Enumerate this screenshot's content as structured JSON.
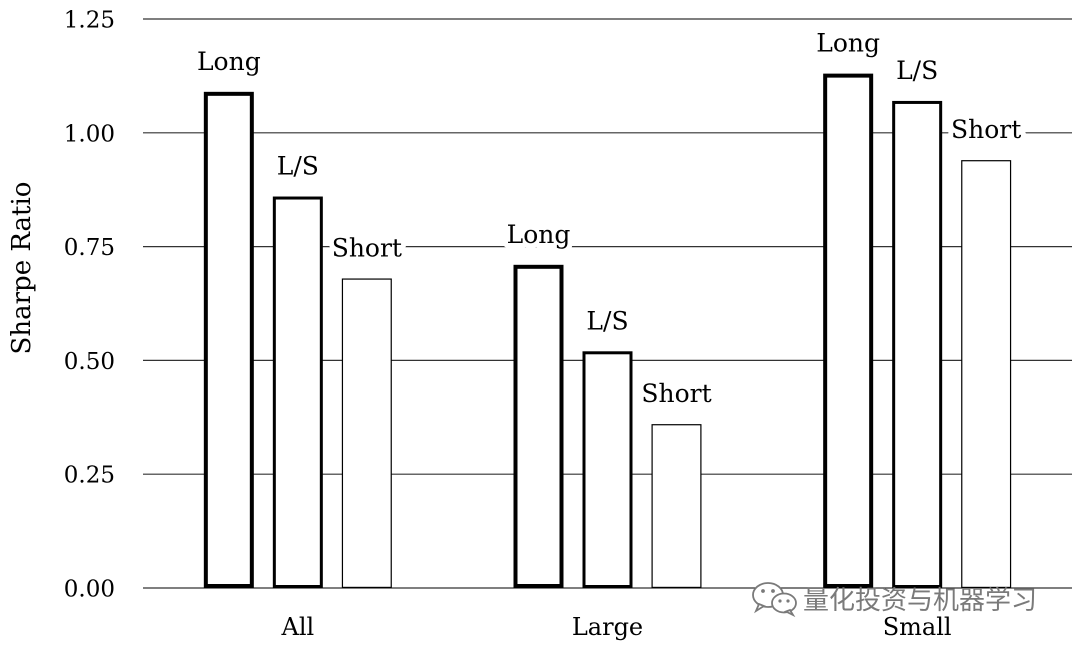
{
  "chart_data": {
    "type": "bar",
    "title": "",
    "xlabel": "",
    "ylabel": "Sharpe Ratio",
    "categories": [
      "All",
      "Large",
      "Small"
    ],
    "series": [
      {
        "name": "Long",
        "values": [
          1.09,
          0.71,
          1.13
        ]
      },
      {
        "name": "L/S",
        "values": [
          0.86,
          0.52,
          1.07
        ]
      },
      {
        "name": "Short",
        "values": [
          0.68,
          0.36,
          0.94
        ]
      }
    ],
    "ylim": [
      0,
      1.25
    ],
    "yticks": [
      0,
      0.25,
      0.5,
      0.75,
      1.0,
      1.25
    ],
    "ytick_labels": [
      "0.00",
      "0.25",
      "0.50",
      "0.75",
      "1.00",
      "1.25"
    ],
    "grid": true,
    "legend": "none",
    "colors": {
      "bar_fill": "#ffffff",
      "bar_edge": "#000000",
      "grid": "#333333",
      "text": "#000000"
    }
  },
  "watermark": {
    "text": "量化投资与机器学习",
    "icon": "wechat-icon",
    "color": "#7a7a7a"
  }
}
